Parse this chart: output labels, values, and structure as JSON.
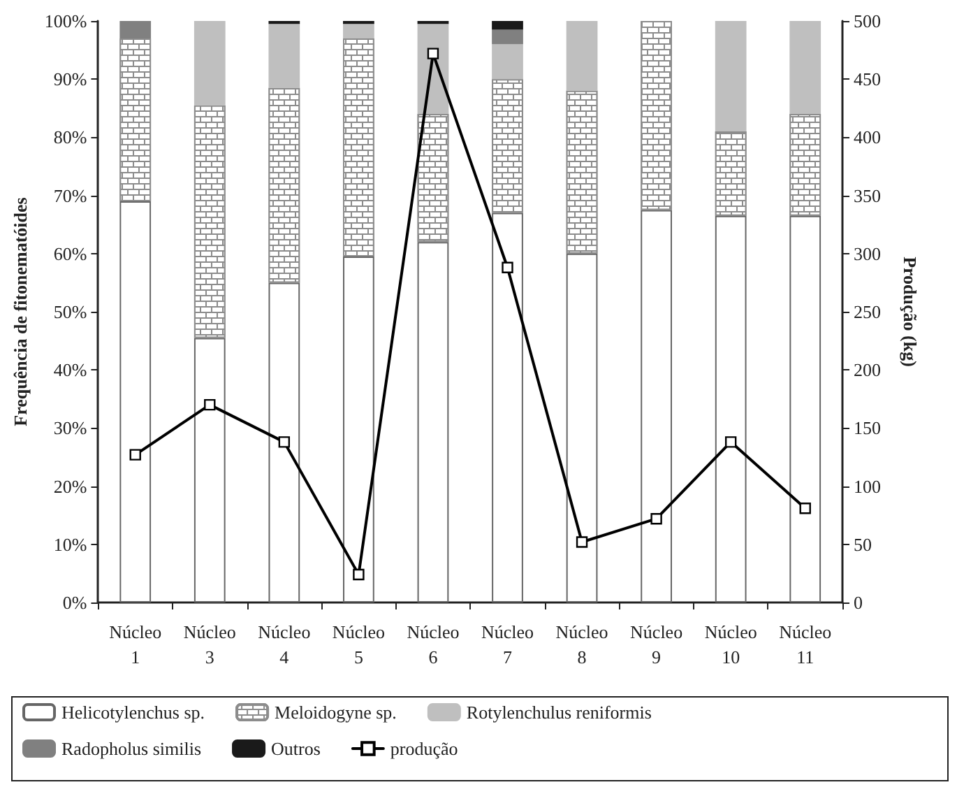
{
  "chart_data": {
    "type": "bar",
    "stacked": true,
    "categories": [
      "Núcleo\n1",
      "Núcleo\n3",
      "Núcleo\n4",
      "Núcleo\n5",
      "Núcleo\n6",
      "Núcleo\n7",
      "Núcleo\n8",
      "Núcleo\n9",
      "Núcleo\n10",
      "Núcleo\n11"
    ],
    "ylabel": "Frequência de fitonematóides",
    "y2label": "Produção (kg)",
    "ylim": [
      0,
      100
    ],
    "yticks": [
      {
        "value": 0,
        "label": "0%"
      },
      {
        "value": 10,
        "label": "10%"
      },
      {
        "value": 20,
        "label": "20%"
      },
      {
        "value": 30,
        "label": "30%"
      },
      {
        "value": 40,
        "label": "40%"
      },
      {
        "value": 50,
        "label": "50%"
      },
      {
        "value": 60,
        "label": "60%"
      },
      {
        "value": 70,
        "label": "70%"
      },
      {
        "value": 80,
        "label": "80%"
      },
      {
        "value": 90,
        "label": "90%"
      },
      {
        "value": 100,
        "label": "100%"
      }
    ],
    "y2lim": [
      0,
      500
    ],
    "y2ticks": [
      0,
      50,
      100,
      150,
      200,
      250,
      300,
      350,
      400,
      450,
      500
    ],
    "grid": false,
    "legend": "bottom",
    "series": [
      {
        "name": "Helicotylenchus sp.",
        "color": "#ffffff",
        "values": [
          69,
          45.5,
          55,
          59.5,
          62,
          67,
          60,
          67.5,
          66.5,
          66.5
        ]
      },
      {
        "name": "Meloidogyne sp.",
        "color": "#8c8c8c",
        "values": [
          28,
          40,
          33.5,
          37.5,
          22,
          23,
          28,
          32.5,
          14.5,
          17.5
        ]
      },
      {
        "name": "Rotylenchulus reniformis",
        "color": "#bfbfbf",
        "values": [
          null,
          14.5,
          11,
          2.5,
          15.5,
          6,
          12,
          null,
          19,
          16
        ]
      },
      {
        "name": "Radopholus similis",
        "color": "#808080",
        "values": [
          3,
          null,
          null,
          null,
          null,
          2.5,
          null,
          null,
          null,
          null
        ]
      },
      {
        "name": "Outros",
        "color": "#1a1a1a",
        "values": [
          null,
          null,
          0.5,
          0.5,
          0.5,
          1.5,
          null,
          null,
          null,
          null
        ]
      },
      {
        "name": "produção",
        "type": "line",
        "axis": "y2",
        "color": "#000000",
        "marker": "square",
        "line_style": "solid",
        "values": [
          127,
          170,
          138,
          24,
          472,
          288,
          52,
          72,
          138,
          81
        ]
      }
    ]
  }
}
